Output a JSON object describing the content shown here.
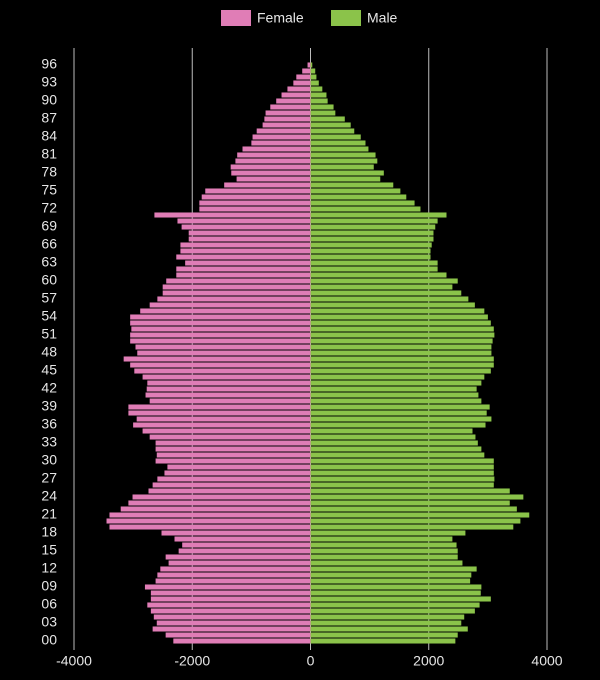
{
  "chart_data": {
    "type": "bar",
    "orientation": "horizontal",
    "legend": "top",
    "categories": [
      "00",
      null,
      null,
      "03",
      null,
      null,
      "06",
      null,
      null,
      "09",
      null,
      null,
      "12",
      null,
      null,
      "15",
      null,
      null,
      "18",
      null,
      null,
      "21",
      null,
      null,
      "24",
      null,
      null,
      "27",
      null,
      null,
      "30",
      null,
      null,
      "33",
      null,
      null,
      "36",
      null,
      null,
      "39",
      null,
      null,
      "42",
      null,
      null,
      "45",
      null,
      null,
      "48",
      null,
      null,
      "51",
      null,
      null,
      "54",
      null,
      null,
      "57",
      null,
      null,
      "60",
      null,
      null,
      "63",
      null,
      null,
      "66",
      null,
      null,
      "69",
      null,
      null,
      "72",
      null,
      null,
      "75",
      null,
      null,
      "78",
      null,
      null,
      "81",
      null,
      null,
      "84",
      null,
      null,
      "87",
      null,
      null,
      "90",
      null,
      null,
      "93",
      null,
      null,
      "96"
    ],
    "series": [
      {
        "name": "Female",
        "color": "#e07db6",
        "values": [
          -2320,
          -2450,
          -2670,
          -2600,
          -2650,
          -2700,
          -2760,
          -2700,
          -2700,
          -2800,
          -2620,
          -2590,
          -2540,
          -2400,
          -2450,
          -2230,
          -2170,
          -2300,
          -2520,
          -3400,
          -3450,
          -3400,
          -3210,
          -3080,
          -3010,
          -2740,
          -2670,
          -2590,
          -2470,
          -2420,
          -2620,
          -2600,
          -2620,
          -2620,
          -2720,
          -2840,
          -3000,
          -2940,
          -3080,
          -3080,
          -2720,
          -2790,
          -2770,
          -2760,
          -2840,
          -2980,
          -3050,
          -3160,
          -2930,
          -2960,
          -3050,
          -3050,
          -3030,
          -3050,
          -3050,
          -2880,
          -2720,
          -2590,
          -2500,
          -2500,
          -2440,
          -2270,
          -2270,
          -2120,
          -2270,
          -2200,
          -2200,
          -2060,
          -2060,
          -2180,
          -2250,
          -2640,
          -1880,
          -1880,
          -1840,
          -1780,
          -1460,
          -1250,
          -1340,
          -1350,
          -1270,
          -1240,
          -1150,
          -1000,
          -980,
          -910,
          -810,
          -780,
          -760,
          -680,
          -580,
          -490,
          -390,
          -290,
          -240,
          -140,
          -50
        ]
      },
      {
        "name": "Male",
        "color": "#8bc34a",
        "values": [
          2450,
          2490,
          2660,
          2550,
          2600,
          2780,
          2860,
          3050,
          2880,
          2890,
          2700,
          2720,
          2810,
          2570,
          2490,
          2490,
          2470,
          2400,
          2620,
          3430,
          3550,
          3700,
          3490,
          3370,
          3600,
          3370,
          3100,
          3110,
          3100,
          3100,
          3100,
          2940,
          2890,
          2830,
          2790,
          2740,
          2960,
          3060,
          2980,
          3030,
          2890,
          2840,
          2810,
          2890,
          2940,
          3050,
          3100,
          3100,
          3060,
          3060,
          3080,
          3110,
          3100,
          3050,
          3000,
          2940,
          2780,
          2670,
          2550,
          2400,
          2490,
          2300,
          2150,
          2150,
          2030,
          2030,
          2050,
          2080,
          2080,
          2110,
          2150,
          2300,
          1860,
          1760,
          1620,
          1520,
          1400,
          1180,
          1240,
          1070,
          1130,
          1100,
          980,
          930,
          850,
          740,
          680,
          580,
          420,
          390,
          290,
          270,
          200,
          140,
          100,
          80,
          30
        ]
      }
    ],
    "xlim": [
      -4000,
      4000
    ],
    "xticks": [
      -4000,
      -2000,
      0,
      2000,
      4000
    ],
    "grid": true
  }
}
